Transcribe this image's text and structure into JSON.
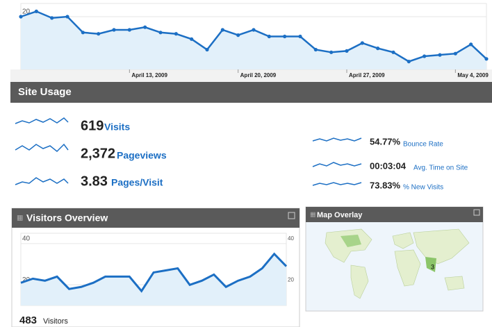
{
  "top_chart": {
    "type": "line",
    "values": [
      20,
      22,
      19.5,
      20,
      14,
      13.5,
      15,
      15,
      16,
      14,
      13.5,
      11.5,
      7.5,
      15,
      13,
      15,
      12.5,
      12.5,
      12.5,
      7.5,
      6.5,
      7,
      10,
      8,
      6.5,
      3,
      5,
      5.5,
      6,
      9.5,
      4
    ],
    "ylim": [
      0,
      25
    ],
    "yticks": [
      20
    ],
    "x_labels": [
      {
        "index": 7,
        "label": "April 13, 2009"
      },
      {
        "index": 14,
        "label": "April 20, 2009"
      },
      {
        "index": 21,
        "label": "April 27, 2009"
      },
      {
        "index": 28,
        "label": "May 4, 2009"
      }
    ],
    "color": "#1c6fc4"
  },
  "site_usage": {
    "title": "Site Usage",
    "metrics": [
      {
        "value": "619",
        "label": "Visits"
      },
      {
        "value": "2,372",
        "label": "Pageviews"
      },
      {
        "value": "3.83",
        "label": "Pages/Visit"
      },
      {
        "value": "54.77%",
        "label": "Bounce Rate"
      },
      {
        "value": "00:03:04",
        "label": "Avg. Time on Site"
      },
      {
        "value": "73.83%",
        "label": "% New Visits"
      }
    ]
  },
  "visitors_overview": {
    "title": "Visitors Overview",
    "chart": {
      "type": "line",
      "values": [
        21,
        23,
        22,
        24,
        18,
        19,
        21,
        24,
        24,
        24,
        17,
        26,
        27,
        28,
        20,
        22,
        25,
        19,
        22,
        24,
        28,
        35,
        29
      ],
      "ylim": [
        10,
        45
      ],
      "yticks": [
        20,
        40
      ],
      "color": "#1c6fc4"
    },
    "total": {
      "value": "483",
      "label": "Visitors"
    }
  },
  "map_overlay": {
    "title": "Map Overlay",
    "marker": "3"
  }
}
